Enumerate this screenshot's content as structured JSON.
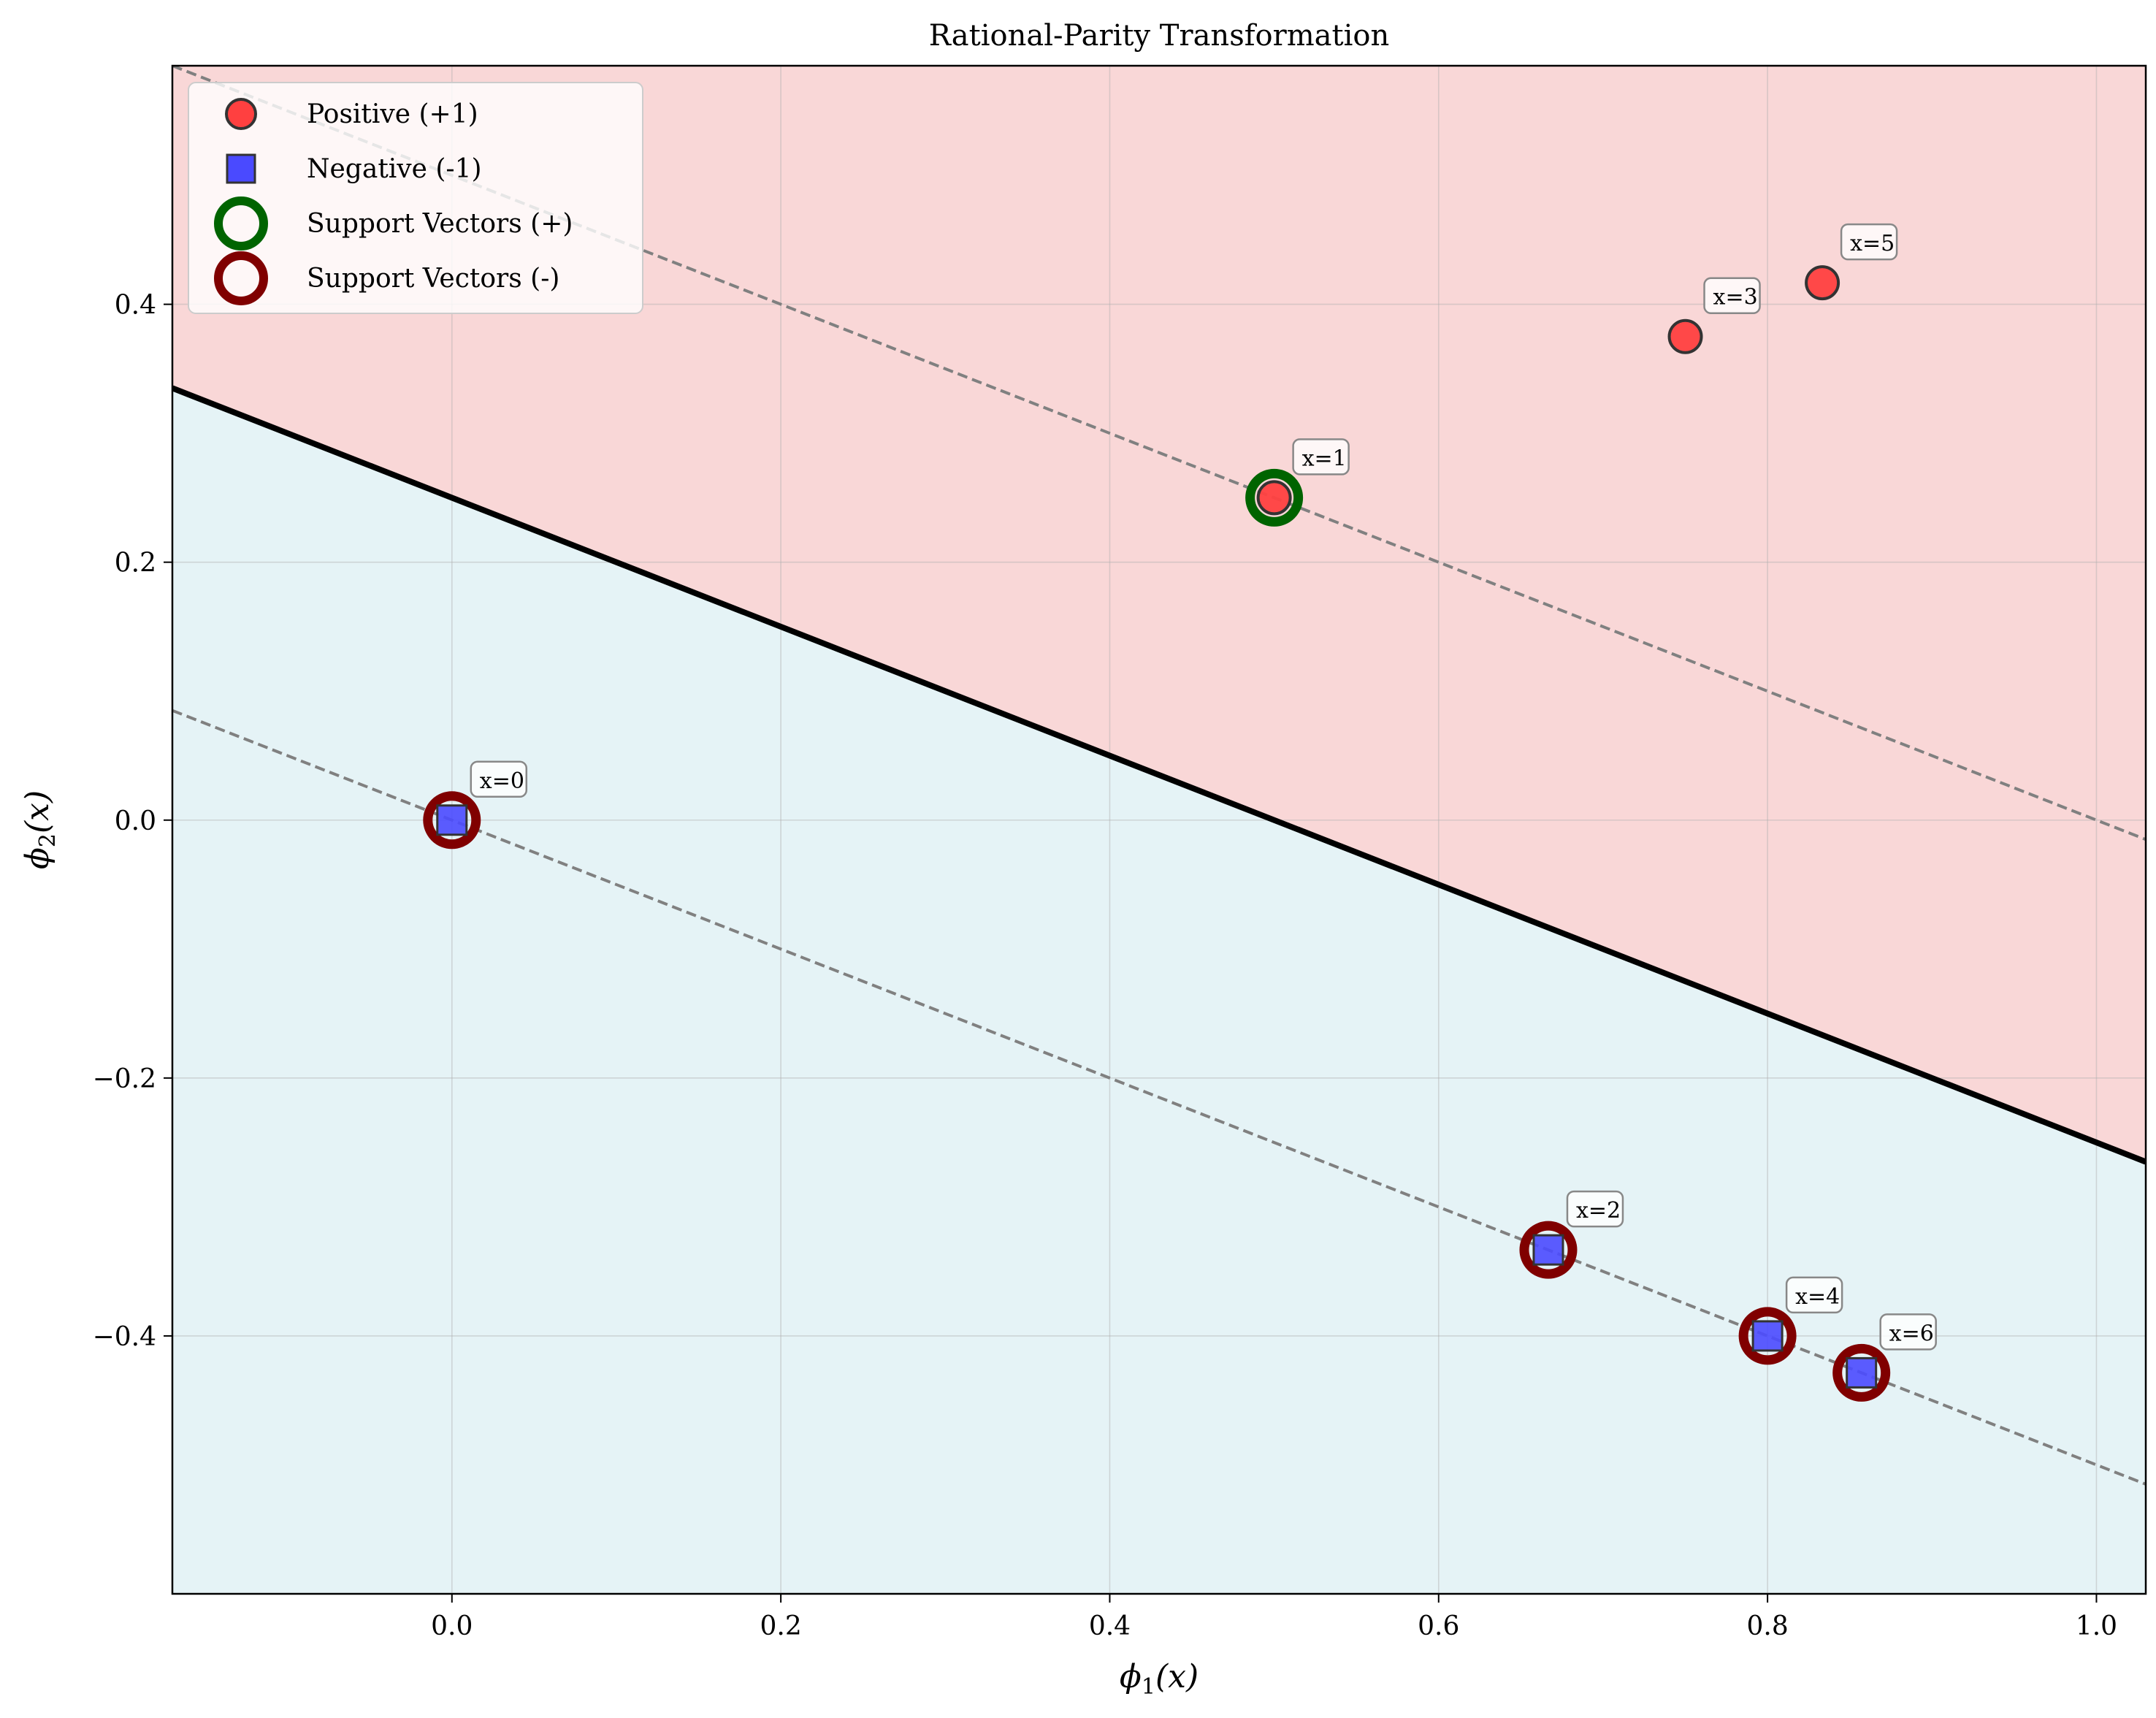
{
  "chart_data": {
    "type": "scatter",
    "title": "Rational-Parity Transformation",
    "xlabel": {
      "base": "ϕ",
      "sub": "1",
      "arg": "(x)"
    },
    "ylabel": {
      "base": "ϕ",
      "sub": "2",
      "arg": "(x)"
    },
    "xlim": [
      -0.17,
      1.03
    ],
    "ylim": [
      -0.6,
      0.585
    ],
    "x_ticks": [
      0.0,
      0.2,
      0.4,
      0.6,
      0.8,
      1.0
    ],
    "x_tick_labels": [
      "0.0",
      "0.2",
      "0.4",
      "0.6",
      "0.8",
      "1.0"
    ],
    "y_ticks": [
      -0.4,
      -0.2,
      0.0,
      0.2,
      0.4
    ],
    "y_tick_labels": [
      "−0.4",
      "−0.2",
      "0.0",
      "0.2",
      "0.4"
    ],
    "grid": true,
    "legend_position": "top-left",
    "decision_boundary": {
      "slope": -0.5,
      "intercept": 0.25,
      "color": "#000000"
    },
    "margins": [
      {
        "slope": -0.5,
        "intercept": 0.5,
        "color": "#808080"
      },
      {
        "slope": -0.5,
        "intercept": 0.0,
        "color": "#808080"
      }
    ],
    "regions": {
      "positive_color": "#f9d7d7",
      "negative_color": "#e5f3f6"
    },
    "series": [
      {
        "name": "Positive (+1)",
        "marker": "circle",
        "color": "#ff4040",
        "points": [
          {
            "x": 0.5,
            "y": 0.25,
            "label": "x=1"
          },
          {
            "x": 0.75,
            "y": 0.375,
            "label": "x=3"
          },
          {
            "x": 0.8333,
            "y": 0.4167,
            "label": "x=5"
          }
        ]
      },
      {
        "name": "Negative (-1)",
        "marker": "square",
        "color": "#4a4aff",
        "points": [
          {
            "x": 0.0,
            "y": 0.0,
            "label": "x=0"
          },
          {
            "x": 0.6667,
            "y": -0.3333,
            "label": "x=2"
          },
          {
            "x": 0.8,
            "y": -0.4,
            "label": "x=4"
          },
          {
            "x": 0.8571,
            "y": -0.4286,
            "label": "x=6"
          }
        ]
      },
      {
        "name": "Support Vectors (+)",
        "marker": "ring",
        "color": "#006400",
        "points": [
          {
            "x": 0.5,
            "y": 0.25
          }
        ]
      },
      {
        "name": "Support Vectors (-)",
        "marker": "ring",
        "color": "#800000",
        "points": [
          {
            "x": 0.0,
            "y": 0.0
          },
          {
            "x": 0.6667,
            "y": -0.3333
          },
          {
            "x": 0.8,
            "y": -0.4
          },
          {
            "x": 0.8571,
            "y": -0.4286
          }
        ]
      }
    ]
  }
}
